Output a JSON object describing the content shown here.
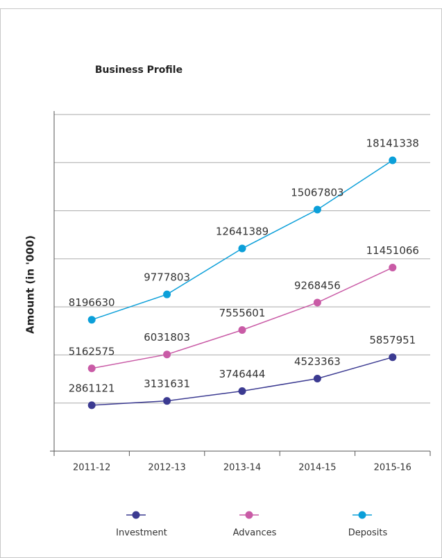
{
  "chart_data": {
    "type": "line",
    "title": "Business Profile",
    "y_label": "Amount (in '000)",
    "categories": [
      "2011-12",
      "2012-13",
      "2013-14",
      "2014-15",
      "2015-16"
    ],
    "series": [
      {
        "name": "Investment",
        "color": "#3b3a91",
        "values": [
          2861121,
          3131631,
          3746444,
          4523363,
          5857951
        ]
      },
      {
        "name": "Advances",
        "color": "#c95ba6",
        "values": [
          5162575,
          6031803,
          7555601,
          9268456,
          11451066
        ]
      },
      {
        "name": "Deposits",
        "color": "#0b9fd9",
        "values": [
          8196630,
          9777803,
          12641389,
          15067803,
          18141338
        ]
      }
    ],
    "ylim": [
      0,
      21000000
    ],
    "yticks": [
      0,
      3000000,
      6000000,
      9000000,
      12000000,
      15000000,
      18000000,
      21000000
    ],
    "grid": true,
    "legend": "bottom"
  }
}
